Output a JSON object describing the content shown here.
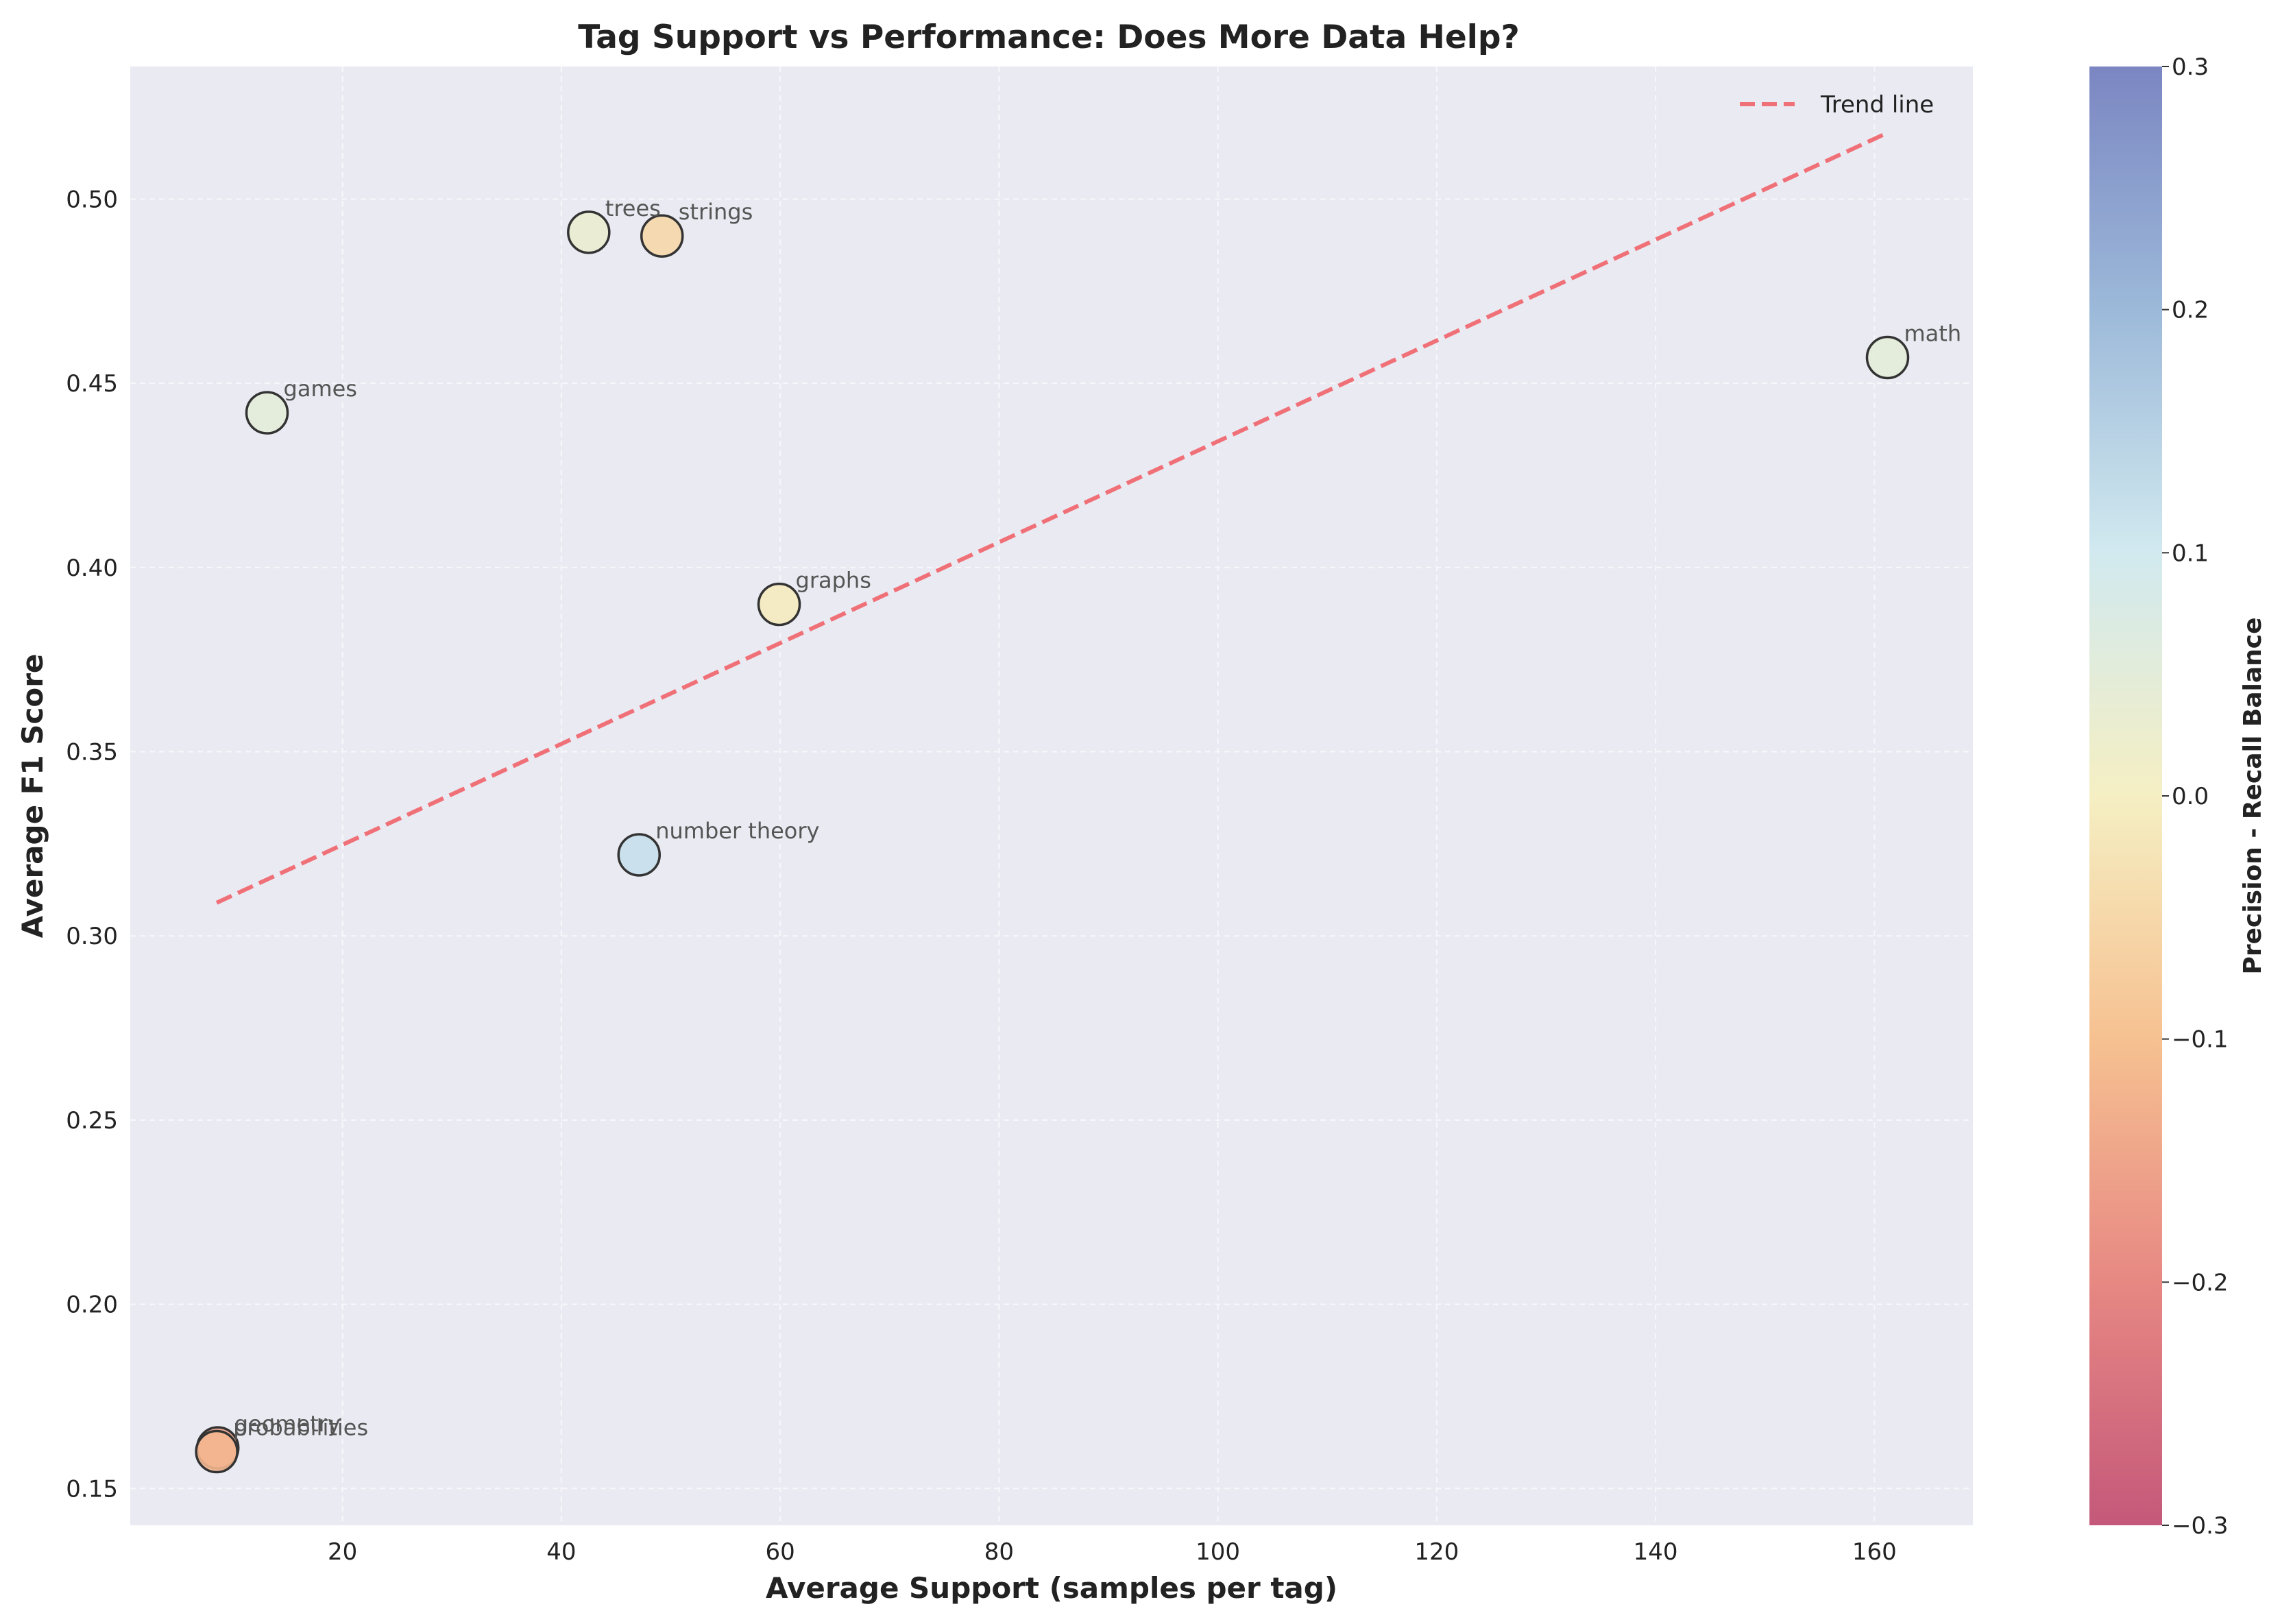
{
  "chart_data": {
    "type": "scatter",
    "title": "Tag Support vs Performance: Does More Data Help?",
    "xlabel": "Average Support (samples per tag)",
    "ylabel": "Average F1 Score",
    "xlim": [
      0.6,
      169
    ],
    "ylim": [
      0.14,
      0.536
    ],
    "x_ticks": [
      20,
      40,
      60,
      80,
      100,
      120,
      140,
      160
    ],
    "y_ticks": [
      0.15,
      0.2,
      0.25,
      0.3,
      0.35,
      0.4,
      0.45,
      0.5
    ],
    "x_tick_labels": [
      "20",
      "40",
      "60",
      "80",
      "100",
      "120",
      "140",
      "160"
    ],
    "y_tick_labels": [
      "0.15",
      "0.20",
      "0.25",
      "0.30",
      "0.35",
      "0.40",
      "0.45",
      "0.50"
    ],
    "grid": true,
    "points": [
      {
        "label": "trees",
        "x": 42.5,
        "y": 0.491,
        "balance": 0.03
      },
      {
        "label": "strings",
        "x": 49.2,
        "y": 0.49,
        "balance": -0.05
      },
      {
        "label": "math",
        "x": 161.2,
        "y": 0.457,
        "balance": 0.05
      },
      {
        "label": "games",
        "x": 13.1,
        "y": 0.442,
        "balance": 0.05
      },
      {
        "label": "graphs",
        "x": 59.9,
        "y": 0.39,
        "balance": -0.01
      },
      {
        "label": "number theory",
        "x": 47.1,
        "y": 0.322,
        "balance": 0.12
      },
      {
        "label": "geometry",
        "x": 8.6,
        "y": 0.161,
        "balance": -0.15
      },
      {
        "label": "probabilities",
        "x": 8.5,
        "y": 0.16,
        "balance": -0.12
      }
    ],
    "trend_line": {
      "name": "Trend line",
      "x": [
        8.5,
        161.2
      ],
      "y": [
        0.309,
        0.518
      ],
      "color": "#f07078",
      "style": "dashed"
    },
    "legend_position": "top-right",
    "colorbar": {
      "label": "Precision - Recall Balance",
      "range": [
        -0.3,
        0.3
      ],
      "ticks": [
        -0.3,
        -0.2,
        -0.1,
        0.0,
        0.1,
        0.2,
        0.3
      ],
      "tick_labels": [
        "−0.3",
        "−0.2",
        "−0.1",
        "0.0",
        "0.1",
        "0.2",
        "0.3"
      ],
      "colormap_stops": [
        "#c4587a",
        "#e78883",
        "#f6c191",
        "#f5efc3",
        "#d1e9ef",
        "#9cb9d9",
        "#7b86c2"
      ]
    },
    "colors": {
      "plot_background": "#eaeaf2",
      "grid": "#ffffff",
      "marker_edge": "#333333"
    }
  }
}
